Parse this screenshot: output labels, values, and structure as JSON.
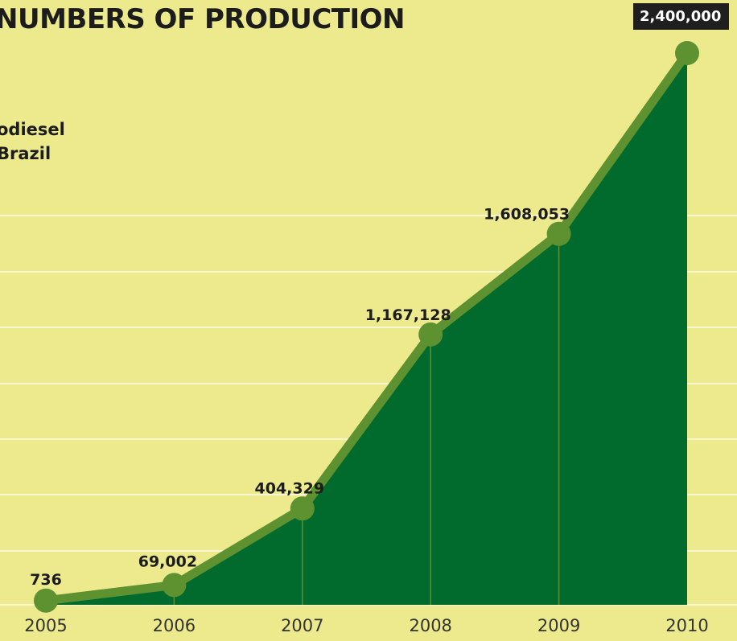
{
  "chart_data": {
    "type": "area",
    "title": "NUMBERS OF PRODUCTION",
    "subtitle_lines": [
      "odiesel",
      "Brazil"
    ],
    "categories": [
      "2005",
      "2006",
      "2007",
      "2008",
      "2009",
      "2010"
    ],
    "values": [
      736,
      69002,
      404329,
      1167128,
      1608053,
      2400000
    ],
    "value_labels": [
      "736",
      "69,002",
      "404,329",
      "1,167,128",
      "1,608,053",
      "2,400,000"
    ],
    "highlight_label": "2,400,000",
    "ylim": [
      0,
      2400000
    ],
    "grid": true,
    "colors": {
      "background": "#ECEA8C",
      "area_fill": "#006B2D",
      "line": "#5E9130",
      "marker": "#5E9130",
      "gridline": "#FFFFFF",
      "text": "#1c1c1c"
    }
  }
}
